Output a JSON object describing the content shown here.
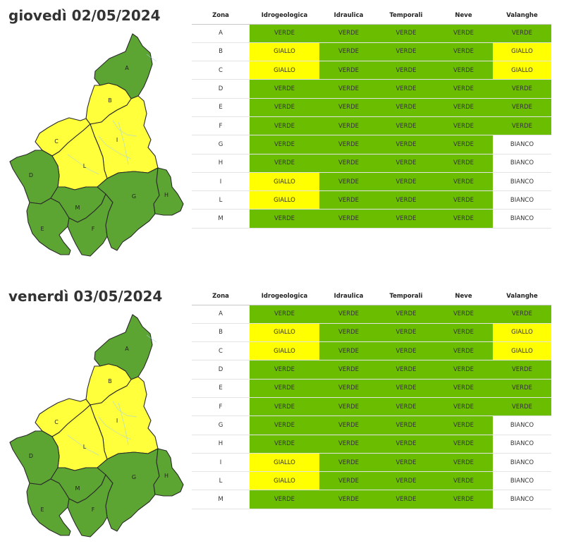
{
  "colors": {
    "verde": "#6bbd00",
    "giallo": "#ffff00",
    "bianco": "#ffffff",
    "map_green": "#5da533",
    "map_yellow": "#ffff3c",
    "map_border": "#2a2a2a"
  },
  "headers": [
    "Zona",
    "Idrogeologica",
    "Idraulica",
    "Temporali",
    "Neve",
    "Valanghe"
  ],
  "days": [
    {
      "title": "giovedì 02/05/2024",
      "zone_levels": {
        "A": "verde",
        "B": "giallo",
        "C": "giallo",
        "D": "verde",
        "E": "verde",
        "F": "verde",
        "G": "verde",
        "H": "verde",
        "I": "giallo",
        "L": "giallo",
        "M": "verde"
      },
      "rows": [
        {
          "zona": "A",
          "cells": [
            "VERDE",
            "VERDE",
            "VERDE",
            "VERDE",
            "VERDE"
          ]
        },
        {
          "zona": "B",
          "cells": [
            "GIALLO",
            "VERDE",
            "VERDE",
            "VERDE",
            "GIALLO"
          ]
        },
        {
          "zona": "C",
          "cells": [
            "GIALLO",
            "VERDE",
            "VERDE",
            "VERDE",
            "GIALLO"
          ]
        },
        {
          "zona": "D",
          "cells": [
            "VERDE",
            "VERDE",
            "VERDE",
            "VERDE",
            "VERDE"
          ]
        },
        {
          "zona": "E",
          "cells": [
            "VERDE",
            "VERDE",
            "VERDE",
            "VERDE",
            "VERDE"
          ]
        },
        {
          "zona": "F",
          "cells": [
            "VERDE",
            "VERDE",
            "VERDE",
            "VERDE",
            "VERDE"
          ]
        },
        {
          "zona": "G",
          "cells": [
            "VERDE",
            "VERDE",
            "VERDE",
            "VERDE",
            "BIANCO"
          ]
        },
        {
          "zona": "H",
          "cells": [
            "VERDE",
            "VERDE",
            "VERDE",
            "VERDE",
            "BIANCO"
          ]
        },
        {
          "zona": "I",
          "cells": [
            "GIALLO",
            "VERDE",
            "VERDE",
            "VERDE",
            "BIANCO"
          ]
        },
        {
          "zona": "L",
          "cells": [
            "GIALLO",
            "VERDE",
            "VERDE",
            "VERDE",
            "BIANCO"
          ]
        },
        {
          "zona": "M",
          "cells": [
            "VERDE",
            "VERDE",
            "VERDE",
            "VERDE",
            "BIANCO"
          ]
        }
      ]
    },
    {
      "title": "venerdì 03/05/2024",
      "zone_levels": {
        "A": "verde",
        "B": "giallo",
        "C": "giallo",
        "D": "verde",
        "E": "verde",
        "F": "verde",
        "G": "verde",
        "H": "verde",
        "I": "giallo",
        "L": "giallo",
        "M": "verde"
      },
      "rows": [
        {
          "zona": "A",
          "cells": [
            "VERDE",
            "VERDE",
            "VERDE",
            "VERDE",
            "VERDE"
          ]
        },
        {
          "zona": "B",
          "cells": [
            "GIALLO",
            "VERDE",
            "VERDE",
            "VERDE",
            "GIALLO"
          ]
        },
        {
          "zona": "C",
          "cells": [
            "GIALLO",
            "VERDE",
            "VERDE",
            "VERDE",
            "GIALLO"
          ]
        },
        {
          "zona": "D",
          "cells": [
            "VERDE",
            "VERDE",
            "VERDE",
            "VERDE",
            "VERDE"
          ]
        },
        {
          "zona": "E",
          "cells": [
            "VERDE",
            "VERDE",
            "VERDE",
            "VERDE",
            "VERDE"
          ]
        },
        {
          "zona": "F",
          "cells": [
            "VERDE",
            "VERDE",
            "VERDE",
            "VERDE",
            "VERDE"
          ]
        },
        {
          "zona": "G",
          "cells": [
            "VERDE",
            "VERDE",
            "VERDE",
            "VERDE",
            "BIANCO"
          ]
        },
        {
          "zona": "H",
          "cells": [
            "VERDE",
            "VERDE",
            "VERDE",
            "VERDE",
            "BIANCO"
          ]
        },
        {
          "zona": "I",
          "cells": [
            "GIALLO",
            "VERDE",
            "VERDE",
            "VERDE",
            "BIANCO"
          ]
        },
        {
          "zona": "L",
          "cells": [
            "GIALLO",
            "VERDE",
            "VERDE",
            "VERDE",
            "BIANCO"
          ]
        },
        {
          "zona": "M",
          "cells": [
            "VERDE",
            "VERDE",
            "VERDE",
            "VERDE",
            "BIANCO"
          ]
        }
      ]
    }
  ]
}
